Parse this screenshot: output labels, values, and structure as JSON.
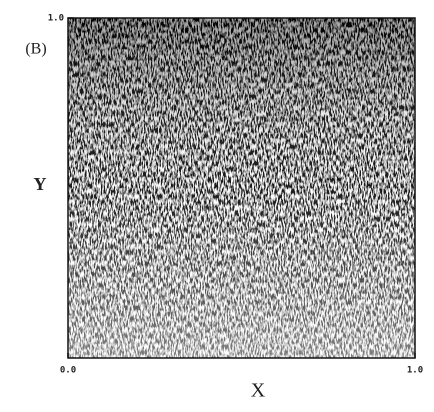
{
  "chart_data": {
    "type": "density",
    "panel_label": "(B)",
    "x_label": "X",
    "y_label": "Y",
    "xlim": [
      0,
      1
    ],
    "xticks": [
      {
        "value": 0,
        "label": "0.0"
      },
      {
        "value": 1,
        "label": "1.0"
      }
    ],
    "ylim": [
      0,
      1
    ],
    "yticks": [
      {
        "value": 1,
        "label": "1.0"
      }
    ]
  }
}
